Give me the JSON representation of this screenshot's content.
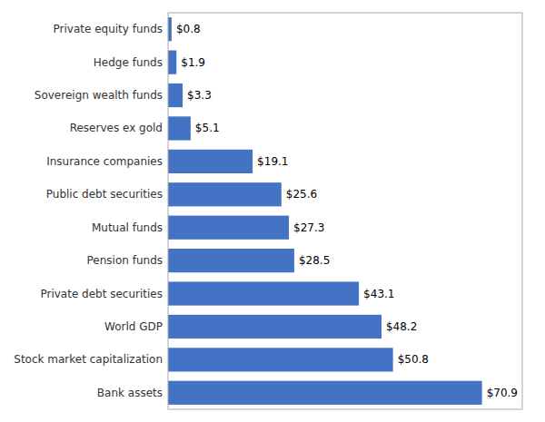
{
  "chart_data": {
    "type": "bar",
    "orientation": "horizontal",
    "categories": [
      "Bank assets",
      "Stock market capitalization",
      "World GDP",
      "Private debt securities",
      "Pension funds",
      "Mutual funds",
      "Public debt securities",
      "Insurance companies",
      "Reserves ex gold",
      "Sovereign wealth funds",
      "Hedge funds",
      "Private equity funds"
    ],
    "values": [
      70.9,
      50.8,
      48.2,
      43.1,
      28.5,
      27.3,
      25.6,
      19.1,
      5.1,
      3.3,
      1.9,
      0.8
    ],
    "value_labels": [
      "$70.9",
      "$50.8",
      "$48.2",
      "$43.1",
      "$28.5",
      "$27.3",
      "$25.6",
      "$19.1",
      "$5.1",
      "$3.3",
      "$1.9",
      "$0.8"
    ],
    "data_labels": true,
    "color": "#4472C4",
    "xlim": [
      0,
      80
    ],
    "tick_labels": "y",
    "grid": false
  }
}
